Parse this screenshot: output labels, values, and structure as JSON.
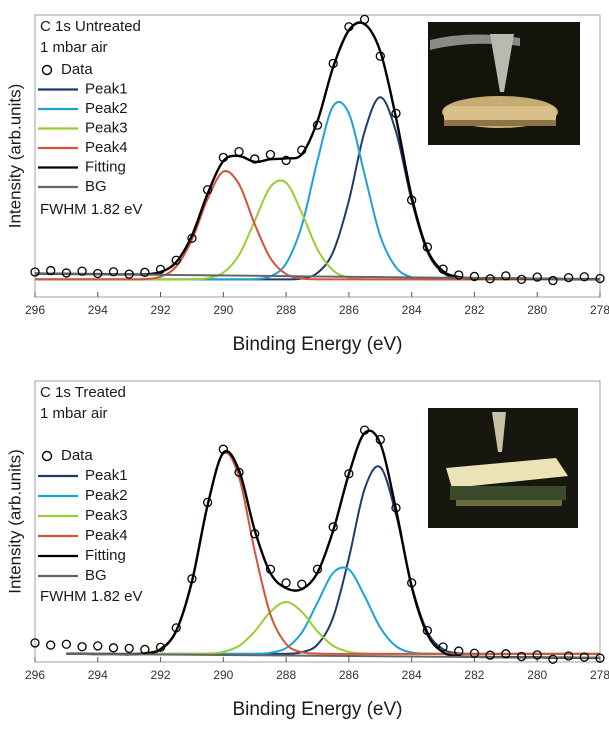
{
  "chart_data": [
    {
      "type": "line",
      "title": "C 1s Untreated",
      "subtitle": "1 mbar air",
      "annotation": "FWHM 1.82 eV",
      "x_label": "Binding Energy (eV)",
      "y_label": "Intensity (arb.units)",
      "x": [
        296,
        295.5,
        295,
        294.5,
        294,
        293.5,
        293,
        292.5,
        292,
        291.5,
        291,
        290.5,
        290,
        289.5,
        289,
        288.5,
        288,
        287.5,
        287,
        286.5,
        286,
        285.5,
        285,
        284.5,
        284,
        283.5,
        283,
        282.5,
        282,
        281.5,
        281,
        280.5,
        280,
        279.5,
        279,
        278.5,
        278
      ],
      "xlim": [
        296,
        278
      ],
      "xticks": [
        296,
        294,
        292,
        290,
        288,
        286,
        284,
        282,
        280,
        278
      ],
      "ylim": [
        -6,
        90
      ],
      "series": [
        {
          "name": "Data",
          "mode": "markers",
          "color": "#000000",
          "values": [
            2.5,
            3,
            2.2,
            2.8,
            2,
            2.6,
            1.8,
            2.4,
            3.4,
            6.5,
            14,
            30.5,
            41.5,
            43.5,
            41,
            42.5,
            40.5,
            44,
            52.5,
            73.5,
            86,
            88.5,
            76,
            56.5,
            27,
            11,
            3.5,
            1.5,
            1,
            0.2,
            1.2,
            0,
            0.8,
            -0.4,
            0.6,
            0.9,
            0.3
          ]
        },
        {
          "name": "Peak1",
          "mode": "lines",
          "color": "#1f3a6e",
          "values": [
            0,
            0,
            0,
            0,
            0,
            0,
            0,
            0,
            0,
            0,
            0,
            0,
            0,
            0,
            0,
            0,
            0,
            0.3,
            2.2,
            9.4,
            26.8,
            50.3,
            62,
            50.3,
            26.8,
            9.4,
            2.2,
            0.3,
            0,
            0,
            0,
            0,
            0,
            0,
            0,
            0,
            0
          ]
        },
        {
          "name": "Peak2",
          "mode": "lines",
          "color": "#1ba3d6",
          "values": [
            0,
            0,
            0,
            0,
            0,
            0,
            0,
            0,
            0,
            0,
            0,
            0,
            0,
            0,
            0.1,
            1,
            5.4,
            18.3,
            40.5,
            59,
            56.5,
            35.7,
            14.8,
            4.1,
            0.7,
            0.1,
            0,
            0,
            0,
            0,
            0,
            0,
            0,
            0,
            0,
            0,
            0
          ]
        },
        {
          "name": "Peak3",
          "mode": "lines",
          "color": "#9acd32",
          "values": [
            0,
            0,
            0,
            0,
            0,
            0,
            0,
            0,
            0,
            0,
            0,
            0.4,
            2.3,
            8.3,
            19.9,
            31.5,
            32.9,
            22.6,
            10.2,
            3,
            0.6,
            0.1,
            0,
            0,
            0,
            0,
            0,
            0,
            0,
            0,
            0,
            0,
            0,
            0,
            0,
            0,
            0
          ]
        },
        {
          "name": "Peak4",
          "mode": "lines",
          "color": "#d4533a",
          "values": [
            0,
            0,
            0,
            0,
            0,
            0,
            0,
            0.1,
            0.9,
            4.4,
            13.5,
            27.4,
            36.7,
            32.4,
            18.8,
            7.2,
            1.8,
            0.3,
            0,
            0,
            0,
            0,
            0,
            0,
            0,
            0,
            0,
            0,
            0,
            0,
            0,
            0,
            0,
            0,
            0,
            0,
            0
          ]
        },
        {
          "name": "Fitting",
          "mode": "lines",
          "color": "#000000",
          "values": [
            2,
            1.9,
            1.9,
            1.8,
            1.8,
            1.7,
            1.7,
            1.7,
            2.5,
            5.9,
            14.9,
            29.2,
            40.3,
            42,
            40,
            40.9,
            41.2,
            42.6,
            53.9,
            72.3,
            84.8,
            86.9,
            77.6,
            55.1,
            28.2,
            10.1,
            2.8,
            0.8,
            0.4,
            0.4,
            0.3,
            0.3,
            0.2,
            0.2,
            0.1,
            0.1,
            0
          ]
        },
        {
          "name": "BG",
          "mode": "lines",
          "color": "#666666",
          "x": [
            296,
            278
          ],
          "values": [
            2,
            0
          ]
        }
      ]
    },
    {
      "type": "line",
      "title": "C 1s Treated",
      "subtitle": "1 mbar air",
      "annotation": "FWHM 1.82 eV",
      "x_label": "Binding Energy (eV)",
      "y_label": "Intensity (arb.units)",
      "x": [
        296,
        295.5,
        295,
        294.5,
        294,
        293.5,
        293,
        292.5,
        292,
        291.5,
        291,
        290.5,
        290,
        289.5,
        289,
        288.5,
        288,
        287.5,
        287,
        286.5,
        286,
        285.5,
        285,
        284.5,
        284,
        283.5,
        283,
        282.5,
        282,
        281.5,
        281,
        280.5,
        280,
        279.5,
        279,
        278.5,
        278
      ],
      "xlim": [
        296,
        278
      ],
      "xticks": [
        296,
        294,
        292,
        290,
        288,
        286,
        284,
        282,
        280,
        278
      ],
      "ylim": [
        -3,
        100
      ],
      "series": [
        {
          "name": "Data",
          "mode": "markers",
          "color": "#000000",
          "values": [
            4,
            3.2,
            3.5,
            2.6,
            2.9,
            2.2,
            2,
            1.6,
            2.4,
            9.5,
            27.5,
            55.5,
            75,
            66.5,
            44,
            31,
            26,
            25.5,
            31,
            46.5,
            66,
            82,
            78.5,
            53.5,
            26,
            8.5,
            2.5,
            1,
            0.2,
            -0.5,
            0,
            -1,
            -0.4,
            -2,
            -0.8,
            -1.2,
            -1.6
          ]
        },
        {
          "name": "Peak1",
          "mode": "lines",
          "color": "#1f3a6e",
          "values": [
            null,
            null,
            0,
            0,
            0,
            0,
            0,
            0,
            0,
            0,
            0,
            0,
            0,
            0,
            0,
            0,
            0,
            0.6,
            3.4,
            13.4,
            35.1,
            60.4,
            68.4,
            51.1,
            25.1,
            8.1,
            1.7,
            0.2,
            0,
            0,
            0,
            0,
            0,
            0,
            0,
            0,
            0
          ]
        },
        {
          "name": "Peak2",
          "mode": "lines",
          "color": "#1ba3d6",
          "values": [
            null,
            null,
            0,
            0,
            0,
            0,
            0,
            0,
            0,
            0,
            0,
            0,
            0,
            0,
            0,
            0.4,
            2.1,
            7.8,
            18.8,
            29.7,
            30.9,
            21.2,
            9.6,
            2.8,
            0.5,
            0.1,
            0,
            0,
            0,
            0,
            0,
            0,
            0,
            0,
            0,
            0,
            0
          ]
        },
        {
          "name": "Peak3",
          "mode": "lines",
          "color": "#9acd32",
          "values": [
            null,
            null,
            0,
            0,
            0,
            0,
            0,
            0,
            0,
            0,
            0,
            0.1,
            0.7,
            2.9,
            8.2,
            15.4,
            19,
            15.4,
            8.2,
            2.9,
            0.7,
            0.1,
            0,
            0,
            0,
            0,
            0,
            0,
            0,
            0,
            0,
            0,
            0,
            0,
            0,
            0,
            0
          ]
        },
        {
          "name": "Peak4",
          "mode": "lines",
          "color": "#d4533a",
          "values": [
            null,
            null,
            0,
            0,
            0,
            0,
            0,
            0.3,
            1.9,
            8.7,
            26.9,
            54.8,
            73.4,
            64.8,
            37.6,
            14.4,
            3.6,
            0.6,
            0.1,
            0,
            0,
            0,
            0,
            0,
            0,
            0,
            0,
            0,
            0,
            0,
            0,
            0,
            0,
            0,
            0,
            0,
            0
          ]
        },
        {
          "name": "Fitting",
          "mode": "lines",
          "color": "#000000",
          "values": [
            null,
            null,
            0,
            0,
            -0.1,
            -0.1,
            -0.2,
            0.1,
            1.6,
            8.4,
            26.5,
            54.5,
            73.7,
            67.2,
            45.3,
            29.6,
            24.1,
            23.7,
            29.8,
            45.2,
            65.9,
            80.9,
            77.1,
            53,
            24.6,
            7.2,
            0.6,
            -0.9,
            -1.1,
            -1.2,
            -1.2,
            -1.3,
            -1.3,
            -1.4,
            -1.4,
            -1.5,
            -1.5
          ]
        },
        {
          "name": "BG",
          "mode": "lines",
          "color": "#666666",
          "x": [
            295,
            278
          ],
          "values": [
            0,
            -1.5
          ]
        }
      ]
    }
  ]
}
